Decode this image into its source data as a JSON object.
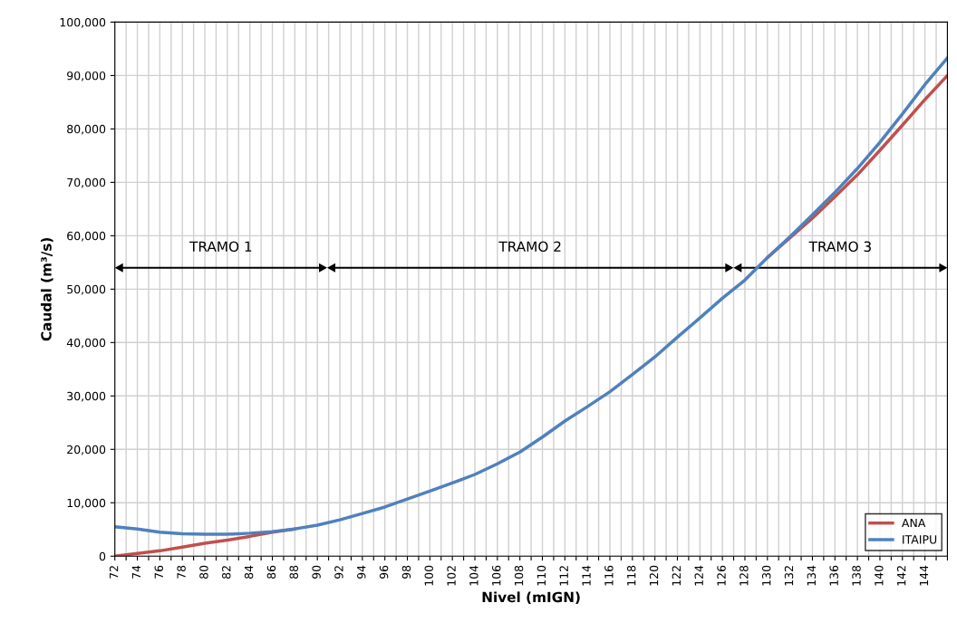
{
  "chart_data": {
    "type": "line",
    "xlabel": "Nivel (mIGN)",
    "ylabel": "Caudal (m³/s)",
    "x": [
      72,
      74,
      76,
      78,
      80,
      82,
      84,
      86,
      88,
      90,
      92,
      94,
      96,
      98,
      100,
      102,
      104,
      106,
      108,
      110,
      112,
      114,
      116,
      118,
      120,
      122,
      124,
      126,
      128,
      130,
      132,
      134,
      136,
      138,
      140,
      142,
      144,
      146
    ],
    "series": [
      {
        "name": "ANA",
        "color": "#c0504d",
        "values": [
          0,
          500,
          1000,
          1700,
          2400,
          3000,
          3700,
          4500,
          5100,
          null,
          null,
          null,
          null,
          null,
          null,
          null,
          null,
          null,
          null,
          null,
          null,
          null,
          null,
          null,
          null,
          null,
          null,
          null,
          null,
          55900,
          59600,
          63300,
          67300,
          71400,
          76000,
          80700,
          85500,
          90000
        ]
      },
      {
        "name": "ITAIPU",
        "color": "#4f81bd",
        "values": [
          5500,
          5100,
          4500,
          4200,
          4100,
          4100,
          4300,
          4600,
          5100,
          5800,
          6800,
          8000,
          9200,
          10700,
          12200,
          13700,
          15300,
          17300,
          19500,
          22300,
          25300,
          28000,
          30800,
          34000,
          37300,
          41000,
          44600,
          48300,
          51700,
          55900,
          59800,
          63900,
          68100,
          72600,
          77500,
          82800,
          88300,
          93300
        ]
      }
    ],
    "xlim": [
      72,
      146
    ],
    "xticks": [
      72,
      {
        "value": 73,
        "label": null
      },
      74,
      {
        "value": 75,
        "label": null
      },
      76,
      {
        "value": 77,
        "label": null
      },
      78,
      {
        "value": 79,
        "label": null
      },
      80,
      {
        "value": 81,
        "label": null
      },
      82,
      {
        "value": 83,
        "label": null
      },
      84,
      {
        "value": 85,
        "label": null
      },
      86,
      {
        "value": 87,
        "label": null
      },
      88,
      {
        "value": 89,
        "label": null
      },
      90,
      {
        "value": 91,
        "label": null
      },
      92,
      {
        "value": 93,
        "label": null
      },
      94,
      {
        "value": 95,
        "label": null
      },
      96,
      {
        "value": 97,
        "label": null
      },
      98,
      {
        "value": 99,
        "label": null
      },
      100,
      {
        "value": 101,
        "label": null
      },
      102,
      {
        "value": 103,
        "label": null
      },
      104,
      {
        "value": 105,
        "label": null
      },
      106,
      {
        "value": 107,
        "label": null
      },
      108,
      {
        "value": 109,
        "label": null
      },
      110,
      {
        "value": 111,
        "label": null
      },
      112,
      {
        "value": 113,
        "label": null
      },
      114,
      {
        "value": 115,
        "label": null
      },
      116,
      {
        "value": 117,
        "label": null
      },
      118,
      {
        "value": 119,
        "label": null
      },
      120,
      {
        "value": 121,
        "label": null
      },
      122,
      {
        "value": 123,
        "label": null
      },
      124,
      {
        "value": 125,
        "label": null
      },
      126,
      {
        "value": 127,
        "label": null
      },
      128,
      {
        "value": 129,
        "label": null
      },
      130,
      {
        "value": 131,
        "label": null
      },
      132,
      {
        "value": 133,
        "label": null
      },
      134,
      {
        "value": 135,
        "label": null
      },
      136,
      {
        "value": 137,
        "label": null
      },
      138,
      {
        "value": 139,
        "label": null
      },
      140,
      {
        "value": 141,
        "label": null
      },
      142,
      {
        "value": 143,
        "label": null
      },
      144,
      {
        "value": 145,
        "label": null
      },
      {
        "value": 146,
        "label": null
      }
    ],
    "ylim": [
      0,
      100000
    ],
    "yticks": [
      0,
      {
        "value": 10000,
        "label": "10,000"
      },
      {
        "value": 20000,
        "label": "20,000"
      },
      {
        "value": 30000,
        "label": "30,000"
      },
      {
        "value": 40000,
        "label": "40,000"
      },
      {
        "value": 50000,
        "label": "50,000"
      },
      {
        "value": 60000,
        "label": "60,000"
      },
      {
        "value": 70000,
        "label": "70,000"
      },
      {
        "value": 80000,
        "label": "80,000"
      },
      {
        "value": 90000,
        "label": "90,000"
      },
      {
        "value": 100000,
        "label": "100,000"
      }
    ],
    "annotations": [
      "TRAMO 1",
      "TRAMO 2",
      "TRAMO 3"
    ],
    "grid": true,
    "legend": "lower right",
    "marker": "none",
    "line_style": "solid"
  }
}
